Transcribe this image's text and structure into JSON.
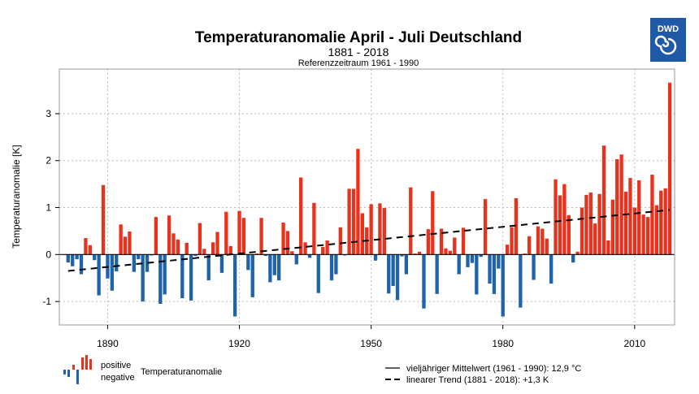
{
  "chart_data": {
    "type": "bar",
    "title": "Temperaturanomalie April - Juli Deutschland",
    "subtitle": "1881 - 2018",
    "reference": "Referenzzeitraum 1961 - 1990",
    "ylabel": "Temperaturanomalie [K]",
    "xlabel": "",
    "xlim": [
      1879,
      2019.1
    ],
    "ylim": [
      -1.5,
      3.95
    ],
    "xticks": [
      1890,
      1920,
      1950,
      1980,
      2010
    ],
    "yticks": [
      -1,
      0,
      1,
      2,
      3
    ],
    "grid": true,
    "start_year": 1881,
    "values": [
      -0.17,
      -0.25,
      -0.1,
      -0.42,
      0.35,
      0.2,
      -0.12,
      -0.87,
      1.48,
      -0.51,
      -0.77,
      -0.36,
      0.64,
      0.38,
      0.49,
      -0.37,
      -0.1,
      -1.0,
      -0.37,
      -0.02,
      0.8,
      -1.05,
      -0.85,
      0.83,
      0.45,
      0.32,
      -0.93,
      0.25,
      -0.98,
      -0.03,
      0.67,
      0.12,
      -0.55,
      0.26,
      0.48,
      -0.39,
      0.91,
      0.18,
      -1.32,
      0.93,
      0.78,
      -0.33,
      -0.91,
      0.02,
      0.78,
      -0.03,
      -0.59,
      -0.44,
      -0.55,
      0.68,
      0.5,
      0.07,
      -0.21,
      1.64,
      0.26,
      -0.07,
      1.1,
      -0.82,
      0.16,
      0.3,
      -0.55,
      -0.42,
      0.58,
      -0.02,
      1.4,
      1.4,
      2.25,
      0.88,
      0.58,
      1.07,
      -0.13,
      1.09,
      0.99,
      -0.83,
      -0.67,
      -0.97,
      -0.04,
      -0.42,
      1.43,
      0.02,
      0.06,
      -1.15,
      0.54,
      1.35,
      -0.84,
      0.55,
      0.13,
      0.08,
      0.36,
      -0.42,
      0.57,
      -0.27,
      -0.18,
      -0.85,
      -0.05,
      1.18,
      -0.62,
      -0.84,
      -0.3,
      -1.32,
      0.21,
      0.58,
      1.2,
      -1.13,
      0.02,
      0.39,
      -0.54,
      0.6,
      0.55,
      0.34,
      -0.62,
      1.6,
      1.26,
      1.5,
      0.84,
      -0.17,
      0.06,
      1.0,
      1.27,
      1.32,
      0.66,
      1.29,
      2.32,
      0.3,
      1.17,
      2.03,
      2.13,
      1.34,
      1.63,
      1.0,
      1.58,
      0.85,
      0.8,
      1.7,
      1.05,
      1.36,
      1.41,
      3.66
    ],
    "trend": {
      "start": [
        1881,
        -0.35
      ],
      "end": [
        2018,
        0.95
      ]
    },
    "colors": {
      "positive": "#e8321e",
      "negative": "#1f63aa",
      "trend": "#000000"
    },
    "legend": {
      "positive": "positive",
      "negative": "negative",
      "anomaly": "Temperaturanomalie",
      "mean": "vieljähriger Mittelwert (1961 - 1990): 12,9 °C",
      "trend": "linearer Trend (1881 - 2018): +1,3 K",
      "placement": "bottom"
    },
    "logo": "DWD"
  }
}
